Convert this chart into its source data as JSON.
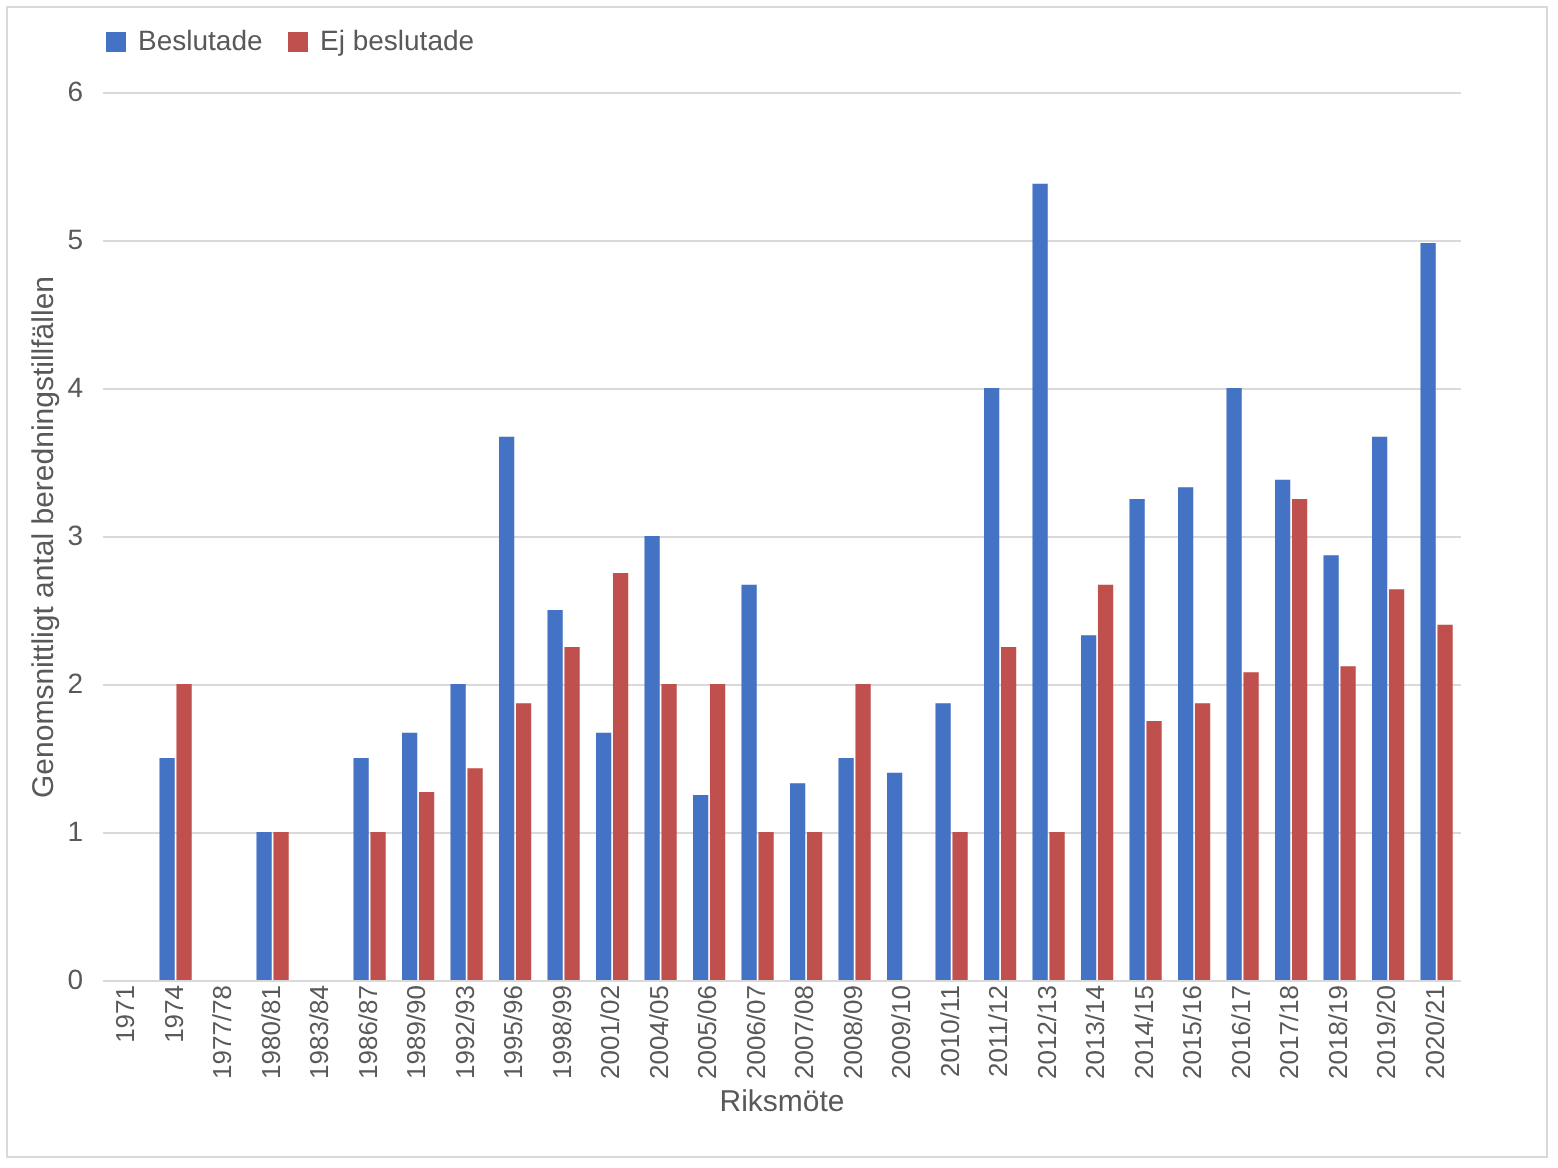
{
  "chart_data": {
    "type": "bar",
    "xlabel": "Riksmöte",
    "ylabel": "Genomsnittligt antal beredningstillfällen",
    "categories": [
      "1971",
      "1974",
      "1977/78",
      "1980/81",
      "1983/84",
      "1986/87",
      "1989/90",
      "1992/93",
      "1995/96",
      "1998/99",
      "2001/02",
      "2004/05",
      "2005/06",
      "2006/07",
      "2007/08",
      "2008/09",
      "2009/10",
      "2010/11",
      "2011/12",
      "2012/13",
      "2013/14",
      "2014/15",
      "2015/16",
      "2016/17",
      "2017/18",
      "2018/19",
      "2019/20",
      "2020/21"
    ],
    "series": [
      {
        "name": "Beslutade",
        "color": "#4472c4",
        "values": [
          null,
          1.5,
          null,
          1,
          null,
          1.5,
          1.67,
          2,
          3.67,
          2.5,
          1.67,
          3,
          1.25,
          2.67,
          1.33,
          1.5,
          1.4,
          1.87,
          4,
          5.38,
          2.33,
          3.25,
          3.33,
          4,
          3.38,
          2.87,
          3.67,
          4.98
        ]
      },
      {
        "name": "Ej beslutade",
        "color": "#c0504d",
        "values": [
          null,
          2,
          null,
          1,
          null,
          1,
          1.27,
          1.43,
          1.87,
          2.25,
          2.75,
          2,
          2,
          1,
          1,
          2,
          null,
          1,
          2.25,
          1,
          2.67,
          1.75,
          1.87,
          2.08,
          3.25,
          2.12,
          2.64,
          2.4
        ]
      }
    ],
    "ylim": [
      0,
      6
    ],
    "yticks": [
      0,
      1,
      2,
      3,
      4,
      5,
      6
    ],
    "grid": "y",
    "legend": "top"
  }
}
